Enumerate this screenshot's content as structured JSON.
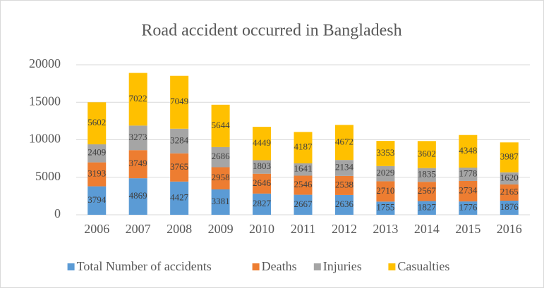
{
  "chart_data": {
    "type": "stacked_bar",
    "title": "Road accident occurred in Bangladesh",
    "categories": [
      "2006",
      "2007",
      "2008",
      "2009",
      "2010",
      "2011",
      "2012",
      "2013",
      "2014",
      "2015",
      "2016"
    ],
    "series": [
      {
        "name": "Total Number of accidents",
        "color": "#5b9bd5",
        "values": [
          3794,
          4869,
          4427,
          3381,
          2827,
          2667,
          2636,
          1755,
          1827,
          1776,
          1876
        ]
      },
      {
        "name": "Deaths",
        "color": "#ed7d31",
        "values": [
          3193,
          3749,
          3765,
          2958,
          2646,
          2546,
          2538,
          2710,
          2567,
          2734,
          2165
        ]
      },
      {
        "name": "Injuries",
        "color": "#a5a5a5",
        "values": [
          2409,
          3273,
          3284,
          2686,
          1803,
          1641,
          2134,
          2029,
          1835,
          1778,
          1620
        ]
      },
      {
        "name": "Casualties",
        "color": "#ffc000",
        "values": [
          5602,
          7022,
          7049,
          5644,
          4449,
          4187,
          4672,
          3353,
          3602,
          4348,
          3987
        ]
      }
    ],
    "ylim": [
      0,
      20000
    ],
    "yticks": [
      0,
      5000,
      10000,
      15000,
      20000
    ],
    "grid": true,
    "legend": "bottom"
  }
}
